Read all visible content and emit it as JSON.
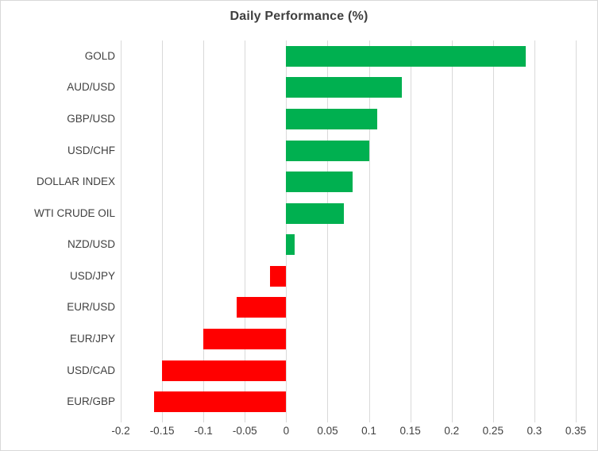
{
  "chart_data": {
    "type": "bar",
    "orientation": "horizontal",
    "title": "Daily Performance (%)",
    "categories": [
      "GOLD",
      "AUD/USD",
      "GBP/USD",
      "USD/CHF",
      "DOLLAR INDEX",
      "WTI CRUDE OIL",
      "NZD/USD",
      "USD/JPY",
      "EUR/USD",
      "EUR/JPY",
      "USD/CAD",
      "EUR/GBP"
    ],
    "values": [
      0.29,
      0.14,
      0.11,
      0.1,
      0.08,
      0.07,
      0.01,
      -0.02,
      -0.06,
      -0.1,
      -0.15,
      -0.16
    ],
    "xlim": [
      -0.2,
      0.35
    ],
    "xticks": [
      -0.2,
      -0.15,
      -0.1,
      -0.05,
      0,
      0.05,
      0.1,
      0.15,
      0.2,
      0.25,
      0.3,
      0.35
    ],
    "xtick_labels": [
      "-0.2",
      "-0.15",
      "-0.1",
      "-0.05",
      "0",
      "0.05",
      "0.1",
      "0.15",
      "0.2",
      "0.25",
      "0.3",
      "0.35"
    ],
    "grid": true,
    "legend": false,
    "colors": {
      "positive": "#00B050",
      "negative": "#FF0000",
      "gridline": "#D9D9D9",
      "tick": "#D9D9D9",
      "title": "#3F3F3F",
      "text": "#404040",
      "border": "#D9D9D9",
      "background": "#FFFFFF"
    }
  }
}
